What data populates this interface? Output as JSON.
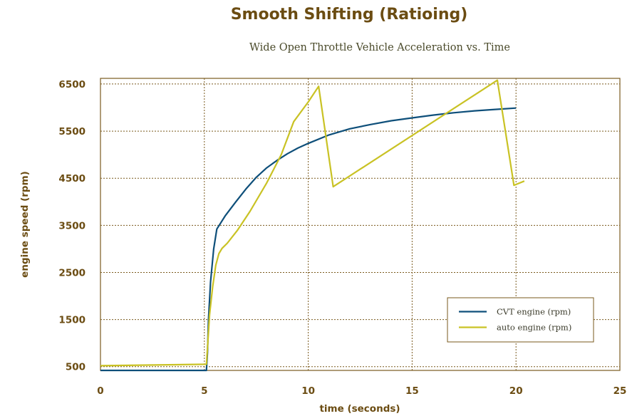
{
  "colors": {
    "text": "#6b4c12",
    "frame": "#7a5a1e",
    "grid": "#7a5a1e",
    "cvt": "#0e4f7a",
    "auto": "#c9c224"
  },
  "chart_data": {
    "type": "line",
    "title": "Smooth Shifting (Ratioing)",
    "subtitle": "Wide Open Throttle Vehicle Acceleration vs. Time",
    "xlabel": "time (seconds)",
    "ylabel": "engine speed (rpm)",
    "xlim": [
      0,
      25
    ],
    "ylim": [
      420,
      6620
    ],
    "x_ticks": [
      0,
      5,
      10,
      15,
      20,
      25
    ],
    "y_ticks": [
      500,
      1500,
      2500,
      3500,
      4500,
      5500,
      6500
    ],
    "grid": true,
    "legend_position": "bottom-right",
    "series": [
      {
        "name": "CVT engine (rpm)",
        "color": "#0e4f7a",
        "x": [
          0,
          5.1,
          5.15,
          5.2,
          5.3,
          5.45,
          5.6,
          5.8,
          6.0,
          6.5,
          7.0,
          7.5,
          8.0,
          8.5,
          9.0,
          9.5,
          10.0,
          11.0,
          12.0,
          13.0,
          14.0,
          15.0,
          16.0,
          17.0,
          18.0,
          19.0,
          20.0
        ],
        "y": [
          420,
          420,
          800,
          1500,
          2300,
          3000,
          3420,
          3560,
          3700,
          3990,
          4270,
          4520,
          4720,
          4880,
          5020,
          5140,
          5240,
          5420,
          5550,
          5640,
          5720,
          5780,
          5840,
          5890,
          5930,
          5960,
          5990
        ]
      },
      {
        "name": "auto engine (rpm)",
        "color": "#c9c224",
        "x": [
          0,
          5.1,
          5.15,
          5.25,
          5.4,
          5.55,
          5.7,
          5.85,
          6.1,
          6.6,
          7.2,
          8.0,
          8.7,
          9.3,
          10.0,
          10.5,
          11.2,
          19.1,
          19.9,
          20.4
        ],
        "y": [
          520,
          550,
          900,
          1600,
          2200,
          2650,
          2900,
          3010,
          3120,
          3400,
          3800,
          4400,
          5000,
          5700,
          6120,
          6450,
          4320,
          6580,
          4350,
          4440
        ]
      }
    ]
  }
}
